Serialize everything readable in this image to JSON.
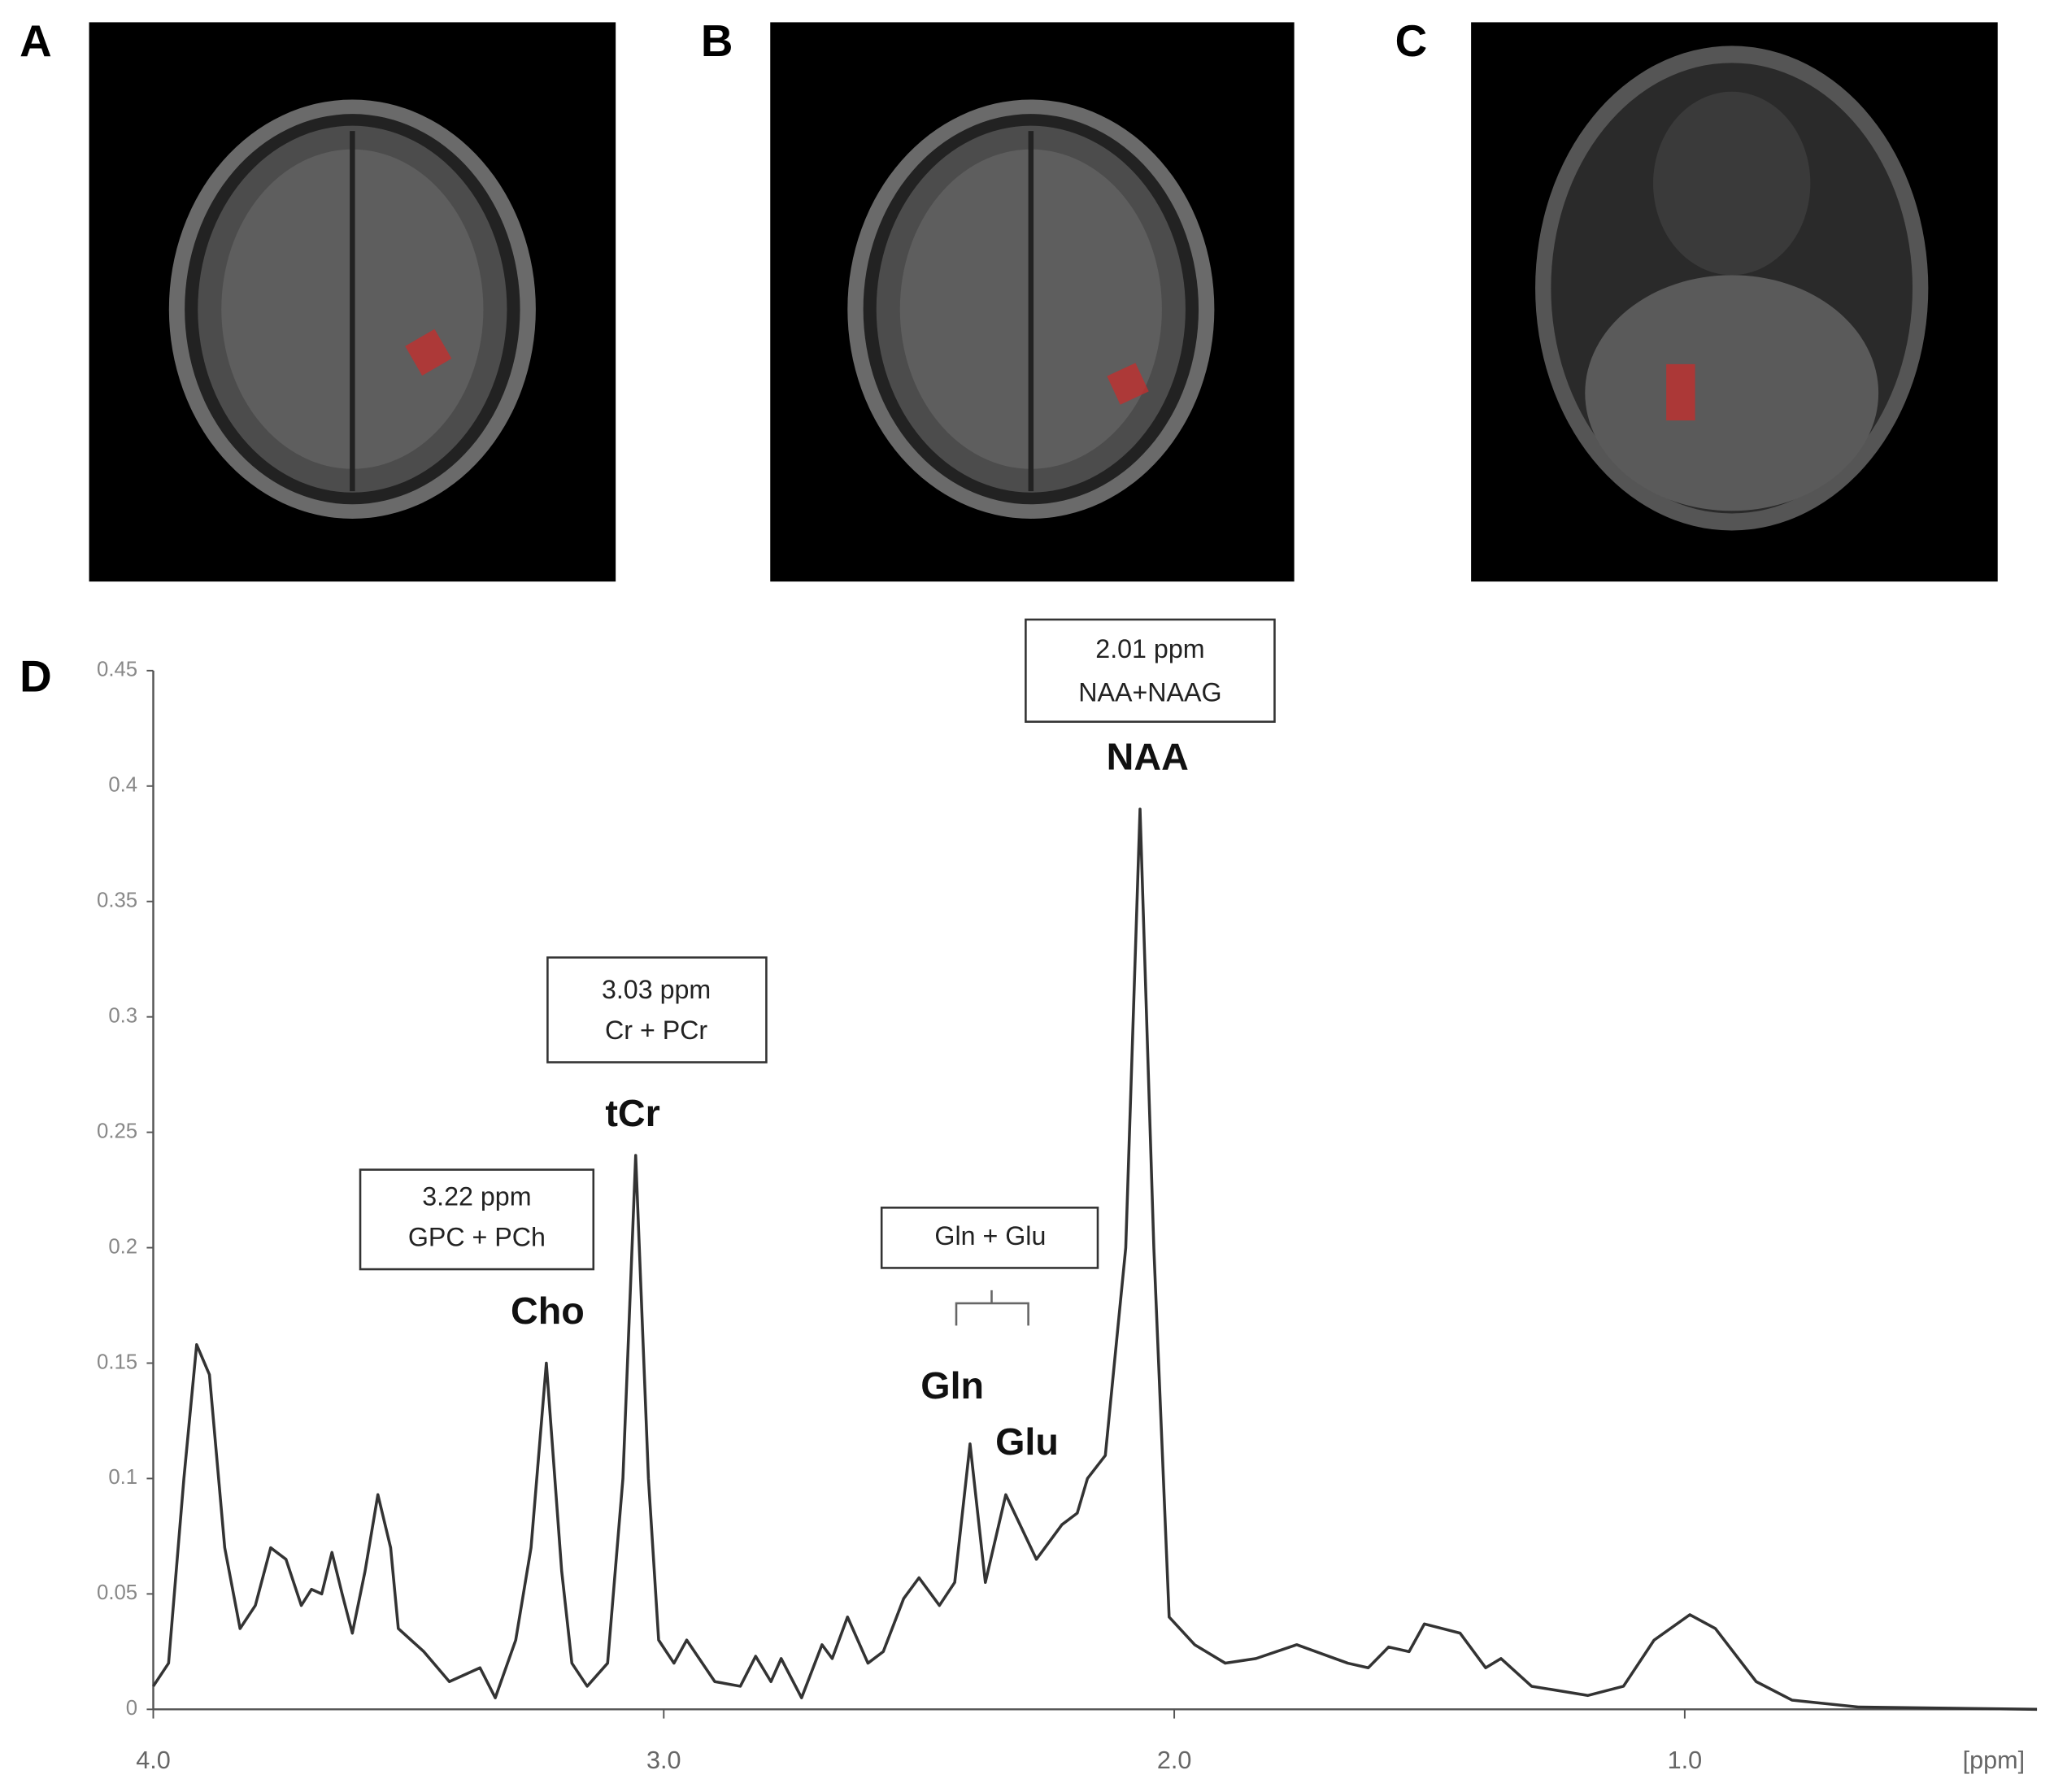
{
  "panel_labels": [
    "A",
    "B",
    "C",
    "D"
  ],
  "chart_data": {
    "type": "line",
    "x_label": "[ppm]",
    "annotations": [
      "2.01 ppm",
      "NAA+NAAG",
      "NAA",
      "3.03 ppm",
      "Cr + PCr",
      "tCr",
      "3.22 ppm",
      "GPC + PCh",
      "Cho",
      "Gln + Glu",
      "Gln",
      "Glu"
    ],
    "xlim": [
      4.0,
      0.31
    ],
    "ylim": [
      0,
      0.45
    ],
    "xticks": [
      {
        "value": 4,
        "label": "4.0"
      },
      {
        "value": 3,
        "label": "3.0"
      },
      {
        "value": 2,
        "label": "2.0"
      },
      {
        "value": 1,
        "label": "1.0"
      }
    ],
    "yticks": [
      0,
      0.05,
      0.1,
      0.15,
      0.2,
      0.25,
      0.3,
      0.35,
      0.4,
      0.45
    ],
    "x": [
      4.0,
      3.97,
      3.94,
      3.915,
      3.89,
      3.86,
      3.83,
      3.8,
      3.77,
      3.74,
      3.71,
      3.69,
      3.67,
      3.65,
      3.63,
      3.61,
      3.585,
      3.56,
      3.535,
      3.52,
      3.47,
      3.42,
      3.36,
      3.33,
      3.29,
      3.26,
      3.23,
      3.2,
      3.18,
      3.15,
      3.11,
      3.08,
      3.055,
      3.03,
      3.01,
      2.98,
      2.955,
      2.9,
      2.85,
      2.82,
      2.79,
      2.77,
      2.73,
      2.69,
      2.67,
      2.64,
      2.6,
      2.57,
      2.53,
      2.5,
      2.46,
      2.43,
      2.4,
      2.37,
      2.33,
      2.27,
      2.22,
      2.19,
      2.17,
      2.135,
      2.095,
      2.067,
      2.04,
      2.01,
      1.96,
      1.9,
      1.84,
      1.76,
      1.66,
      1.62,
      1.58,
      1.54,
      1.51,
      1.44,
      1.39,
      1.36,
      1.3,
      1.19,
      1.12,
      1.06,
      0.99,
      0.94,
      0.86,
      0.79,
      0.66,
      0.31
    ],
    "series": [
      {
        "name": "spectrum",
        "color": "#333333",
        "values": [
          0.01,
          0.02,
          0.1,
          0.158,
          0.145,
          0.07,
          0.035,
          0.045,
          0.07,
          0.065,
          0.045,
          0.052,
          0.05,
          0.068,
          0.05,
          0.033,
          0.06,
          0.093,
          0.07,
          0.035,
          0.025,
          0.012,
          0.018,
          0.005,
          0.03,
          0.07,
          0.15,
          0.06,
          0.02,
          0.01,
          0.02,
          0.1,
          0.24,
          0.1,
          0.03,
          0.02,
          0.03,
          0.012,
          0.01,
          0.023,
          0.012,
          0.022,
          0.005,
          0.028,
          0.022,
          0.04,
          0.02,
          0.025,
          0.048,
          0.057,
          0.045,
          0.055,
          0.115,
          0.055,
          0.093,
          0.065,
          0.08,
          0.085,
          0.1,
          0.11,
          0.2,
          0.39,
          0.2,
          0.04,
          0.028,
          0.02,
          0.022,
          0.028,
          0.02,
          0.018,
          0.027,
          0.025,
          0.037,
          0.033,
          0.018,
          0.022,
          0.01,
          0.006,
          0.01,
          0.03,
          0.041,
          0.035,
          0.012,
          0.004,
          0.001,
          0
        ]
      }
    ]
  }
}
